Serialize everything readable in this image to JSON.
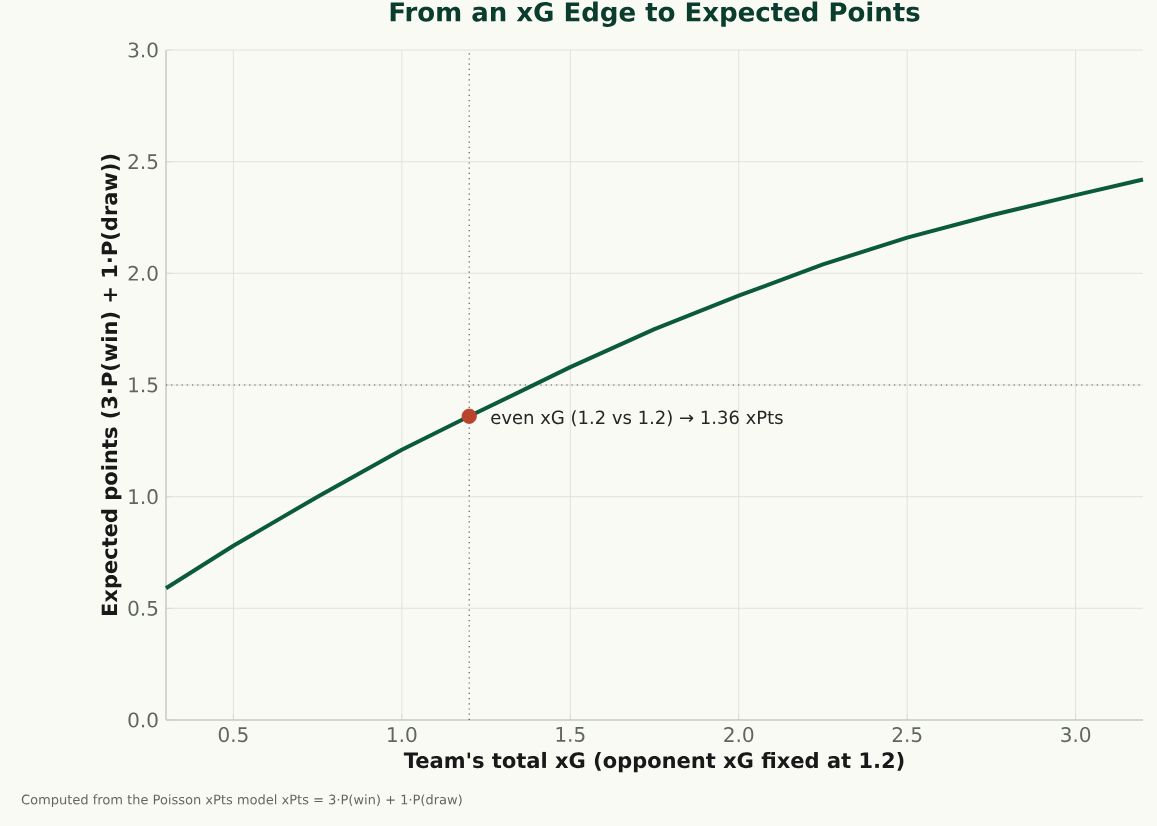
{
  "chart_data": {
    "type": "line",
    "title": "From an xG Edge to Expected Points",
    "xlabel": "Team's total xG  (opponent xG fixed at 1.2)",
    "ylabel": "Expected points  (3·P(win) + 1·P(draw))",
    "series": [
      {
        "color": "#0b5a3c",
        "x": [
          0.3,
          0.5,
          0.75,
          1.0,
          1.2,
          1.5,
          1.75,
          2.0,
          2.25,
          2.5,
          2.75,
          3.0,
          3.2
        ],
        "values": [
          0.59,
          0.78,
          1.0,
          1.21,
          1.36,
          1.58,
          1.75,
          1.9,
          2.04,
          2.16,
          2.26,
          2.35,
          2.42
        ]
      },
      {
        "type": "scatter",
        "color": "#b9432d",
        "x": [
          1.2
        ],
        "values": [
          1.36
        ]
      }
    ],
    "xlim": [
      0.3,
      3.2
    ],
    "xticks": [
      0.5,
      {
        "value": 1,
        "label": "1.0"
      },
      1.5,
      {
        "value": 2,
        "label": "2.0"
      },
      2.5,
      {
        "value": 3,
        "label": "3.0"
      }
    ],
    "ylim": [
      0,
      3
    ],
    "yticks": [
      {
        "value": 0,
        "label": "0.0"
      },
      0.5,
      {
        "value": 1,
        "label": "1.0"
      },
      1.5,
      {
        "value": 2,
        "label": "2.0"
      },
      2.5,
      {
        "value": 3,
        "label": "3.0"
      }
    ],
    "grid": true,
    "line_style": "solid",
    "ref_lines": [
      {
        "axis": "x",
        "value": 1.2,
        "color": "#555a55",
        "line_style": "dotted"
      },
      {
        "axis": "y",
        "value": 1.5,
        "color": "#555a55",
        "line_style": "dotted"
      }
    ],
    "annotations": [
      {
        "text": "even xG (1.2 vs 1.2) → 1.36 xPts",
        "x": 1.2,
        "y": 1.36
      },
      "Computed from the Poisson xPts model xPts = 3·P(win) + 1·P(draw)"
    ]
  }
}
